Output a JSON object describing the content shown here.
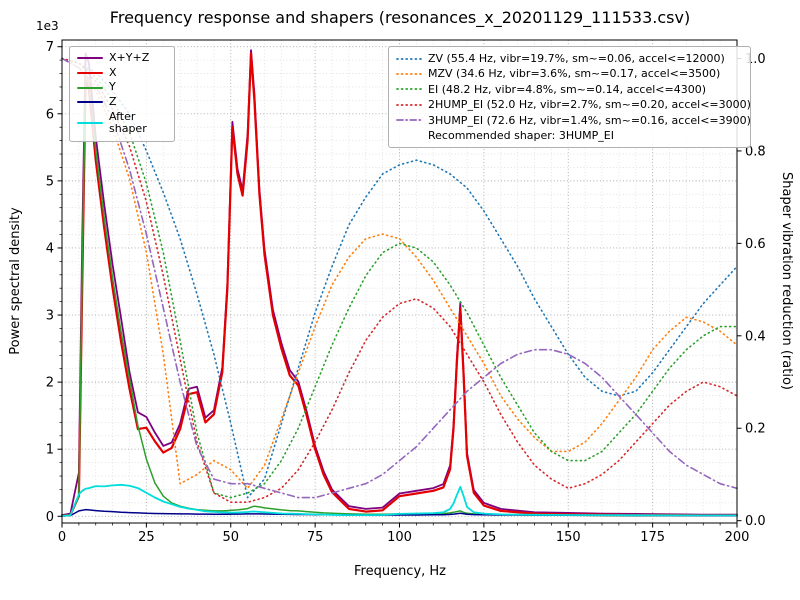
{
  "title": "Frequency response and shapers (resonances_x_20201129_111533.csv)",
  "axes": {
    "x_label": "Frequency, Hz",
    "y_left_label": "Power spectral density",
    "y_left_offset": "1e3",
    "y_right_label": "Shaper vibration reduction (ratio)"
  },
  "chart_data": {
    "type": "line",
    "x_range": [
      0,
      200
    ],
    "y_left_range": [
      0,
      7000
    ],
    "y_left_scale": "1e3",
    "y_right_range": [
      0,
      1.0
    ],
    "grid": true,
    "legend_left_position": "upper-left",
    "legend_right_position": "upper-right",
    "xticks": [
      0,
      25,
      50,
      75,
      100,
      125,
      150,
      175,
      200
    ],
    "xtick_labels": [
      "0",
      "25",
      "50",
      "75",
      "100",
      "125",
      "150",
      "175",
      "200"
    ],
    "ytick_left_values": [
      0,
      1000,
      2000,
      3000,
      4000,
      5000,
      6000,
      7000
    ],
    "ytick_left_labels": [
      "0",
      "1",
      "2",
      "3",
      "4",
      "5",
      "6",
      "7"
    ],
    "ytick_right_values": [
      0,
      0.2,
      0.4,
      0.6,
      0.8,
      1.0
    ],
    "ytick_right_labels": [
      "0.0",
      "0.2",
      "0.4",
      "0.6",
      "0.8",
      "1.0"
    ],
    "psd_x": [
      0,
      2.5,
      5,
      6,
      7,
      8,
      10,
      12.5,
      15,
      17.5,
      20,
      22.5,
      25,
      27.5,
      30,
      32.5,
      35,
      37.5,
      40,
      42.5,
      45,
      47.5,
      49,
      50.5,
      52,
      53.5,
      55,
      56,
      57,
      58.5,
      60,
      62.5,
      65,
      67.5,
      70,
      72.5,
      75,
      77.5,
      80,
      85,
      90,
      95,
      100,
      105,
      110,
      113,
      115,
      116,
      117,
      118,
      119,
      120,
      122,
      125,
      130,
      140,
      150,
      160,
      170,
      180,
      190,
      200
    ],
    "psd_series": [
      {
        "name": "x+y+z",
        "label": "X+Y+Z",
        "color": "#7f007f",
        "width": 1.8,
        "values": [
          20,
          40,
          650,
          4200,
          6900,
          6750,
          5650,
          4650,
          3750,
          2950,
          2150,
          1550,
          1480,
          1250,
          1050,
          1100,
          1380,
          1900,
          1930,
          1470,
          1580,
          2220,
          3480,
          5880,
          5180,
          4860,
          5700,
          6950,
          6300,
          4880,
          3980,
          3080,
          2580,
          2180,
          2010,
          1560,
          1050,
          670,
          400,
          150,
          110,
          130,
          340,
          380,
          420,
          480,
          760,
          1360,
          2370,
          3180,
          2160,
          950,
          390,
          200,
          110,
          60,
          50,
          40,
          35,
          30,
          25,
          25
        ]
      },
      {
        "name": "x",
        "label": "X",
        "color": "#e50000",
        "width": 2.2,
        "values": [
          10,
          20,
          300,
          3500,
          6500,
          6350,
          5300,
          4300,
          3400,
          2600,
          1900,
          1300,
          1320,
          1120,
          950,
          1020,
          1300,
          1820,
          1850,
          1400,
          1520,
          2150,
          3400,
          5800,
          5100,
          4780,
          5600,
          6900,
          6200,
          4800,
          3900,
          3000,
          2500,
          2100,
          1950,
          1500,
          1000,
          620,
          360,
          110,
          70,
          90,
          300,
          340,
          380,
          430,
          700,
          1300,
          2300,
          3100,
          2100,
          900,
          350,
          160,
          80,
          40,
          30,
          25,
          20,
          20,
          15,
          15
        ]
      },
      {
        "name": "y",
        "label": "Y",
        "color": "#2ca02c",
        "width": 1.5,
        "values": [
          10,
          20,
          300,
          3800,
          6600,
          6450,
          5450,
          4450,
          3550,
          2750,
          2050,
          1350,
          850,
          500,
          300,
          200,
          150,
          120,
          100,
          90,
          80,
          80,
          85,
          90,
          95,
          105,
          115,
          135,
          150,
          140,
          125,
          110,
          95,
          85,
          80,
          70,
          60,
          50,
          45,
          35,
          30,
          30,
          35,
          35,
          35,
          40,
          50,
          60,
          70,
          80,
          60,
          45,
          35,
          30,
          25,
          20,
          15,
          12,
          10,
          10,
          8,
          8
        ]
      },
      {
        "name": "z",
        "label": "Z",
        "color": "#00008b",
        "width": 1.5,
        "values": [
          5,
          10,
          80,
          90,
          100,
          95,
          85,
          75,
          70,
          60,
          55,
          50,
          45,
          42,
          40,
          38,
          36,
          35,
          33,
          32,
          30,
          30,
          31,
          32,
          33,
          34,
          35,
          36,
          36,
          35,
          34,
          32,
          30,
          28,
          27,
          26,
          25,
          24,
          22,
          20,
          18,
          18,
          20,
          20,
          22,
          24,
          28,
          32,
          38,
          45,
          38,
          30,
          25,
          22,
          20,
          18,
          15,
          14,
          12,
          12,
          10,
          10
        ]
      },
      {
        "name": "after-shaper",
        "label": "After shaper",
        "color": "#00dddd",
        "width": 1.8,
        "values": [
          5,
          15,
          330,
          380,
          410,
          420,
          450,
          445,
          460,
          470,
          455,
          420,
          350,
          280,
          220,
          180,
          140,
          115,
          95,
          75,
          65,
          58,
          56,
          55,
          57,
          60,
          64,
          70,
          72,
          66,
          60,
          50,
          42,
          38,
          35,
          32,
          28,
          25,
          22,
          18,
          18,
          20,
          35,
          42,
          48,
          60,
          110,
          190,
          320,
          440,
          300,
          140,
          60,
          40,
          28,
          22,
          20,
          18,
          16,
          15,
          14,
          14
        ]
      }
    ],
    "shaper_x": [
      0,
      5,
      10,
      15,
      20,
      25,
      30,
      35,
      40,
      45,
      50,
      55,
      60,
      65,
      70,
      75,
      80,
      85,
      90,
      95,
      100,
      105,
      110,
      115,
      120,
      125,
      130,
      135,
      140,
      145,
      150,
      155,
      160,
      165,
      170,
      175,
      180,
      185,
      190,
      195,
      200
    ],
    "shaper_series": [
      {
        "name": "ZV",
        "label": "ZV (55.4 Hz, vibr=19.7%, sm~=0.06, accel<=12000)",
        "color": "#1f77b4",
        "style": "dotted",
        "values": [
          1.0,
          0.99,
          0.97,
          0.93,
          0.88,
          0.8,
          0.71,
          0.61,
          0.49,
          0.36,
          0.21,
          0.05,
          0.09,
          0.21,
          0.33,
          0.45,
          0.55,
          0.64,
          0.7,
          0.75,
          0.77,
          0.78,
          0.77,
          0.75,
          0.72,
          0.67,
          0.61,
          0.55,
          0.48,
          0.42,
          0.36,
          0.31,
          0.28,
          0.27,
          0.28,
          0.32,
          0.37,
          0.42,
          0.47,
          0.51,
          0.55
        ]
      },
      {
        "name": "MZV",
        "label": "MZV (34.6 Hz, vibr=3.6%, sm~=0.17, accel<=3500)",
        "color": "#ff7f0e",
        "style": "dotted",
        "values": [
          1.0,
          0.98,
          0.93,
          0.85,
          0.74,
          0.58,
          0.36,
          0.08,
          0.1,
          0.13,
          0.11,
          0.07,
          0.12,
          0.22,
          0.32,
          0.42,
          0.51,
          0.57,
          0.61,
          0.62,
          0.61,
          0.57,
          0.52,
          0.46,
          0.4,
          0.34,
          0.27,
          0.22,
          0.18,
          0.15,
          0.15,
          0.17,
          0.21,
          0.26,
          0.31,
          0.37,
          0.41,
          0.44,
          0.43,
          0.41,
          0.38
        ]
      },
      {
        "name": "EI",
        "label": "EI (48.2 Hz, vibr=4.8%, sm~=0.14, accel<=4300)",
        "color": "#2ca02c",
        "style": "dotted",
        "values": [
          1.0,
          0.99,
          0.96,
          0.91,
          0.84,
          0.73,
          0.58,
          0.39,
          0.19,
          0.06,
          0.05,
          0.06,
          0.08,
          0.13,
          0.2,
          0.29,
          0.38,
          0.46,
          0.53,
          0.58,
          0.6,
          0.59,
          0.56,
          0.51,
          0.45,
          0.38,
          0.31,
          0.25,
          0.19,
          0.15,
          0.13,
          0.13,
          0.15,
          0.19,
          0.23,
          0.28,
          0.33,
          0.37,
          0.4,
          0.42,
          0.42
        ]
      },
      {
        "name": "2HUMP_EI",
        "label": "2HUMP_EI (52.0 Hz, vibr=2.7%, sm~=0.20, accel<=3000)",
        "color": "#d62728",
        "style": "dotted",
        "values": [
          1.0,
          0.99,
          0.95,
          0.89,
          0.81,
          0.69,
          0.53,
          0.35,
          0.17,
          0.06,
          0.04,
          0.04,
          0.05,
          0.07,
          0.11,
          0.17,
          0.24,
          0.32,
          0.39,
          0.44,
          0.47,
          0.48,
          0.46,
          0.42,
          0.36,
          0.3,
          0.23,
          0.17,
          0.12,
          0.09,
          0.07,
          0.08,
          0.1,
          0.13,
          0.17,
          0.21,
          0.25,
          0.28,
          0.3,
          0.29,
          0.27
        ]
      },
      {
        "name": "3HUMP_EI",
        "label": "3HUMP_EI (72.6 Hz, vibr=1.4%, sm~=0.16, accel<=3900)",
        "color": "#9467bd",
        "style": "dashdot",
        "values": [
          1.0,
          0.98,
          0.94,
          0.87,
          0.76,
          0.62,
          0.46,
          0.3,
          0.16,
          0.09,
          0.08,
          0.08,
          0.07,
          0.06,
          0.05,
          0.05,
          0.06,
          0.07,
          0.08,
          0.1,
          0.13,
          0.16,
          0.2,
          0.24,
          0.28,
          0.31,
          0.34,
          0.36,
          0.37,
          0.37,
          0.36,
          0.34,
          0.31,
          0.27,
          0.23,
          0.19,
          0.15,
          0.12,
          0.1,
          0.08,
          0.07
        ]
      }
    ],
    "recommended_label": "Recommended shaper: 3HUMP_EI"
  }
}
